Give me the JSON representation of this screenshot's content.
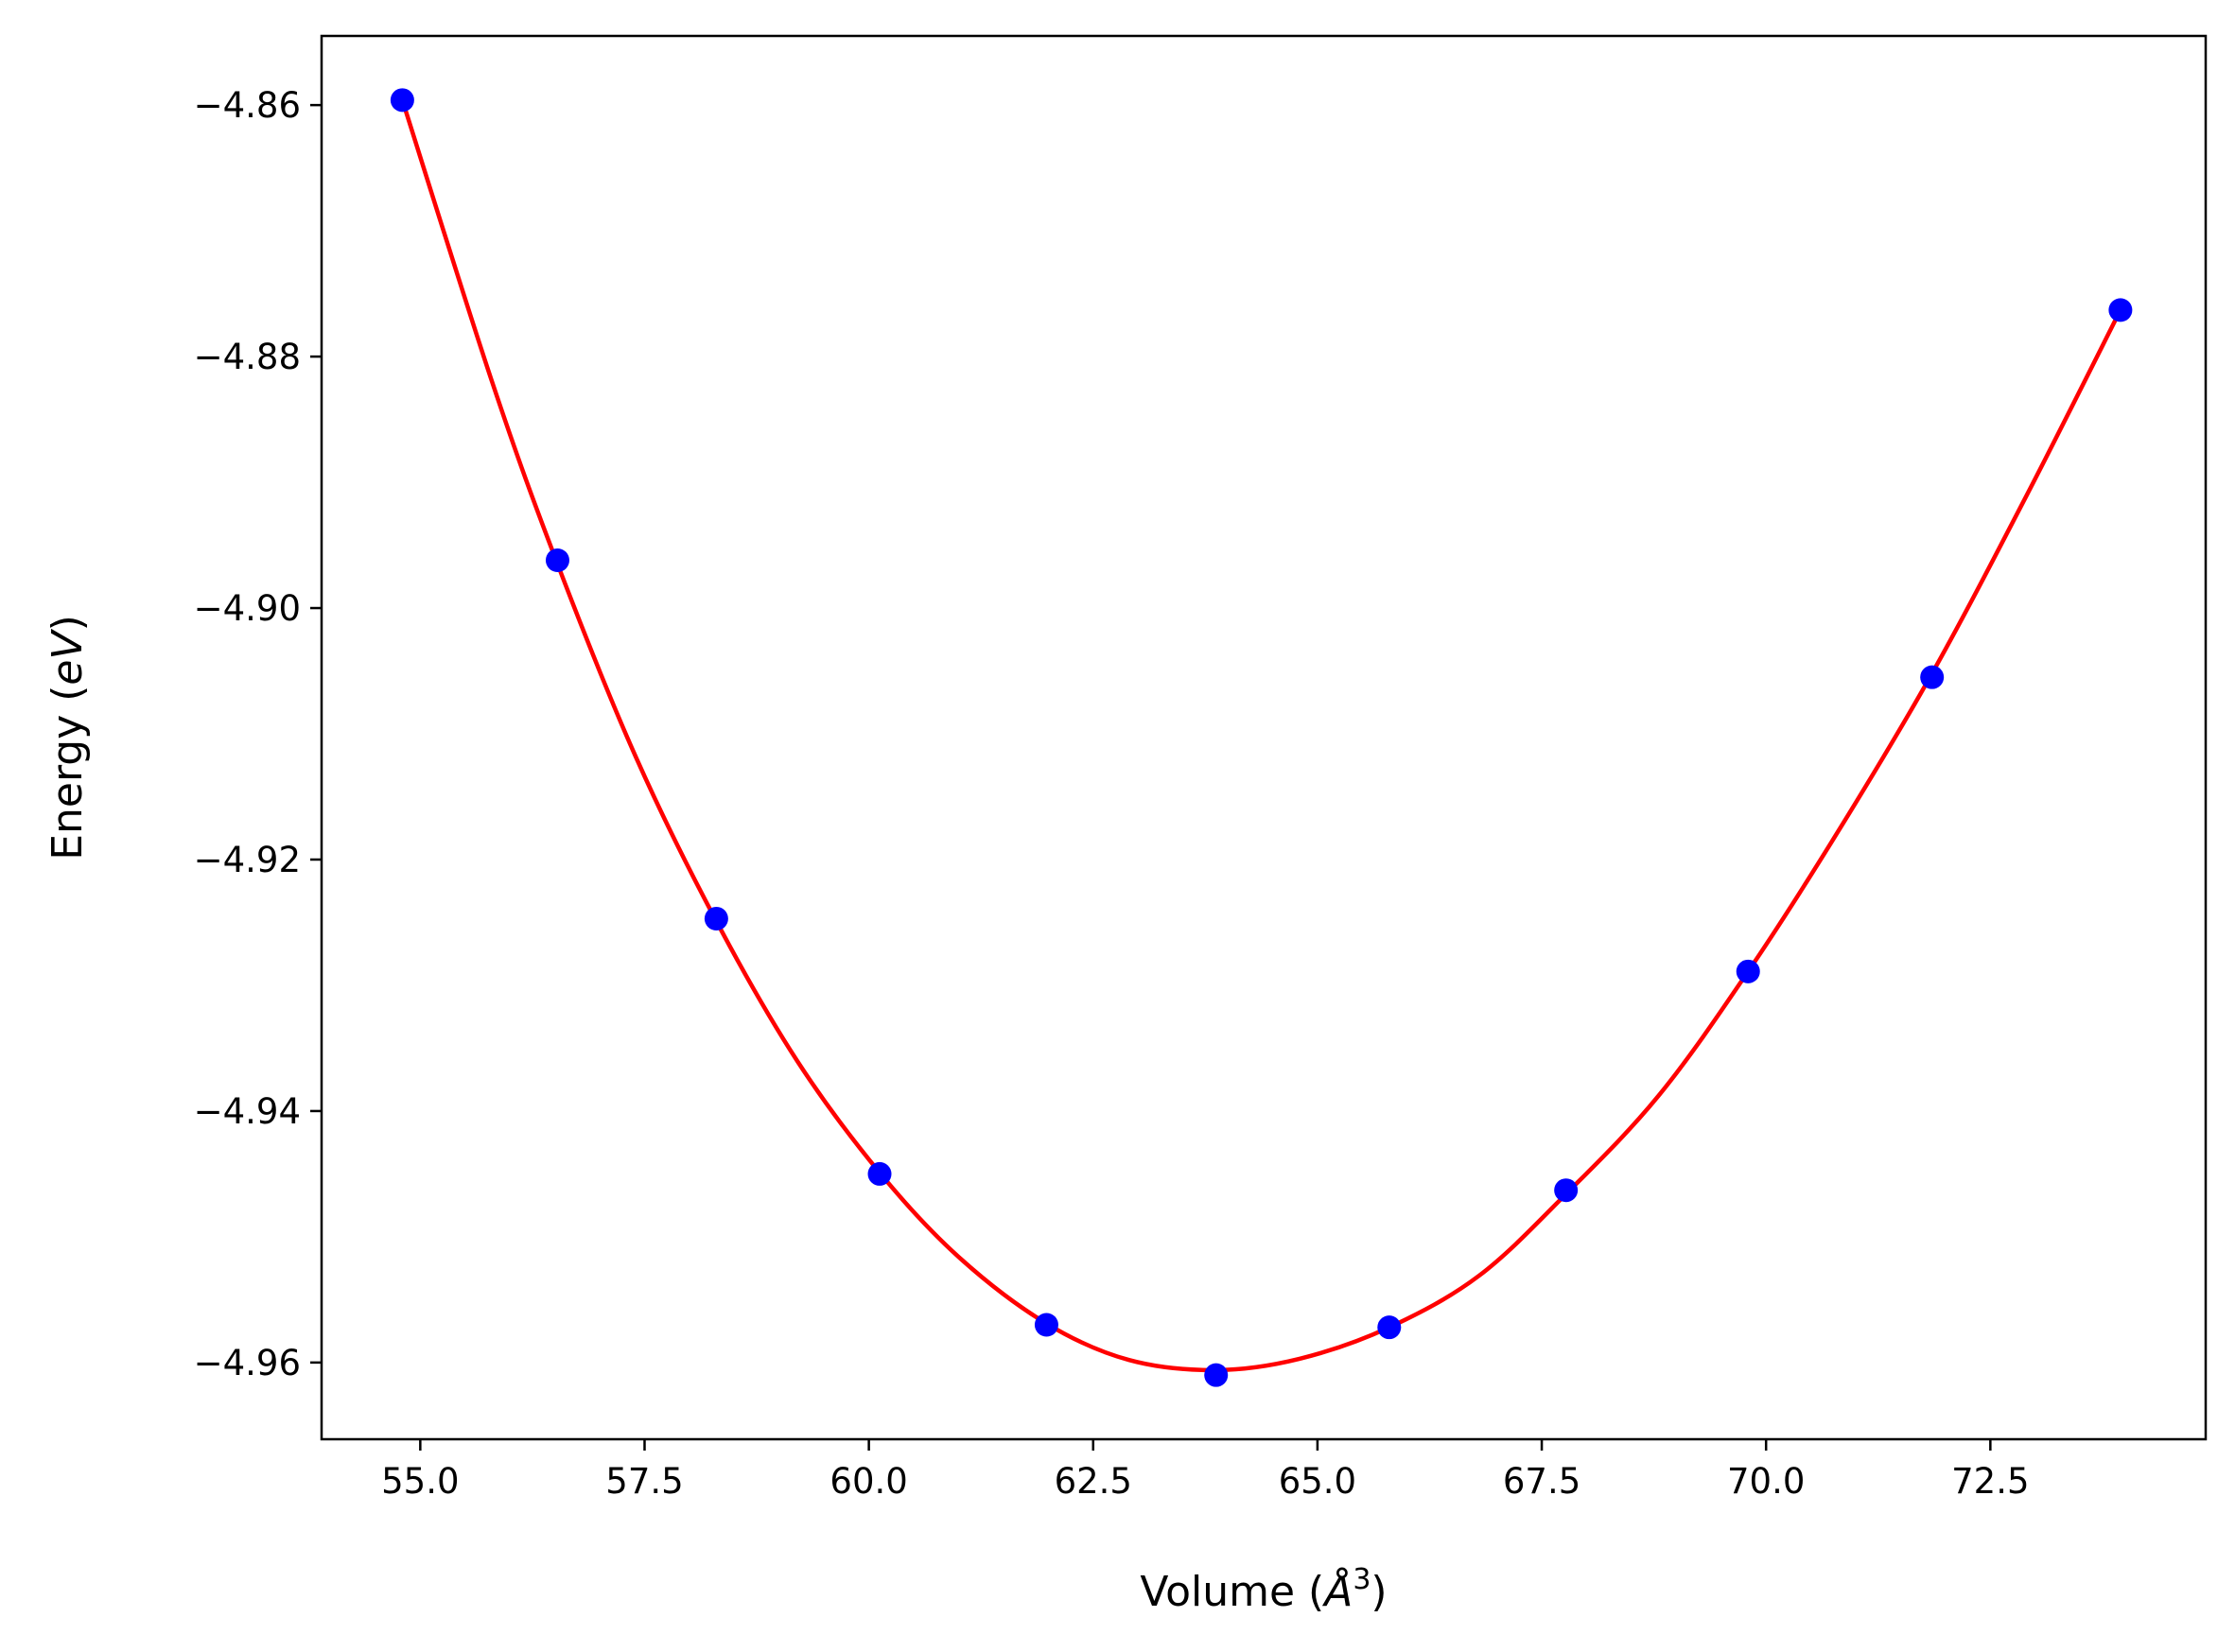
{
  "chart_data": {
    "type": "scatter",
    "title": "",
    "xlabel": "Volume (",
    "xlabel_symbol": "Å",
    "xlabel_power": "3",
    "xlabel_close": ")",
    "ylabel": "Energy (",
    "ylabel_unit": "eV",
    "ylabel_close": ")",
    "xlim": [
      53.9,
      74.9
    ],
    "ylim": [
      -4.9661,
      -4.8545
    ],
    "grid": false,
    "legend": "none",
    "x_ticks": [
      55.0,
      57.5,
      60.0,
      62.5,
      65.0,
      67.5,
      70.0,
      72.5
    ],
    "x_tick_labels": [
      "55.0",
      "57.5",
      "60.0",
      "62.5",
      "65.0",
      "67.5",
      "70.0",
      "72.5"
    ],
    "y_ticks": [
      -4.86,
      -4.88,
      -4.9,
      -4.92,
      -4.94,
      -4.96
    ],
    "y_tick_labels": [
      "−4.86",
      "−4.88",
      "−4.90",
      "−4.92",
      "−4.94",
      "−4.96"
    ],
    "series": [
      {
        "kind": "points",
        "color": "#0000ff",
        "x": [
          54.8,
          56.53,
          58.3,
          60.12,
          61.98,
          63.87,
          65.8,
          67.77,
          69.8,
          71.85,
          73.95
        ],
        "y": [
          -4.8596,
          -4.8962,
          -4.9247,
          -4.945,
          -4.957,
          -4.961,
          -4.9572,
          -4.9463,
          -4.9289,
          -4.9055,
          -4.8763
        ]
      },
      {
        "kind": "fit-curve",
        "color": "#ff0000",
        "x": [
          54.8,
          55.8,
          56.53,
          57.4,
          58.3,
          59.2,
          60.12,
          61.0,
          61.98,
          62.9,
          63.87,
          64.8,
          65.8,
          66.8,
          67.77,
          68.8,
          69.8,
          70.8,
          71.85,
          72.9,
          73.95
        ],
        "y": [
          -4.8596,
          -4.882,
          -4.8965,
          -4.9118,
          -4.9249,
          -4.936,
          -4.9449,
          -4.9516,
          -4.9569,
          -4.9598,
          -4.9606,
          -4.9597,
          -4.9572,
          -4.9531,
          -4.9466,
          -4.9388,
          -4.9289,
          -4.9178,
          -4.9052,
          -4.8911,
          -4.8763
        ]
      }
    ]
  }
}
